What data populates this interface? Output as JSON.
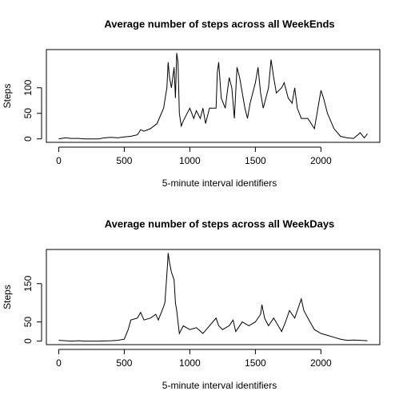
{
  "chart_data": [
    {
      "type": "line",
      "title": "Average number of steps across all WeekEnds",
      "xlabel": "5-minute interval identifiers",
      "ylabel": "Steps",
      "color": "#000000",
      "xlim": [
        -94.2,
        2449.2
      ],
      "xticks": [
        0,
        500,
        1000,
        1500,
        2000
      ],
      "ylim": [
        -6.7,
        174.7
      ],
      "yticks": [
        0,
        50,
        100
      ],
      "x": [
        0,
        50,
        100,
        150,
        200,
        250,
        300,
        350,
        400,
        450,
        500,
        550,
        600,
        625,
        650,
        700,
        750,
        800,
        825,
        835,
        845,
        860,
        880,
        890,
        900,
        910,
        920,
        935,
        950,
        980,
        1000,
        1030,
        1050,
        1080,
        1100,
        1120,
        1150,
        1200,
        1210,
        1220,
        1240,
        1270,
        1300,
        1320,
        1340,
        1360,
        1380,
        1420,
        1440,
        1460,
        1500,
        1520,
        1540,
        1560,
        1600,
        1620,
        1640,
        1660,
        1700,
        1720,
        1750,
        1780,
        1800,
        1820,
        1850,
        1900,
        1950,
        2000,
        2020,
        2050,
        2100,
        2150,
        2200,
        2250,
        2300,
        2330,
        2355
      ],
      "values": [
        0,
        2,
        1,
        1,
        0,
        0,
        0,
        2,
        3,
        2,
        4,
        5,
        8,
        18,
        15,
        20,
        30,
        60,
        100,
        150,
        120,
        100,
        140,
        80,
        168,
        150,
        50,
        25,
        35,
        50,
        60,
        40,
        55,
        40,
        60,
        30,
        60,
        60,
        130,
        150,
        80,
        60,
        120,
        100,
        40,
        140,
        120,
        60,
        40,
        70,
        110,
        140,
        90,
        60,
        100,
        155,
        120,
        90,
        100,
        110,
        80,
        70,
        100,
        60,
        40,
        40,
        20,
        95,
        80,
        50,
        20,
        5,
        2,
        1,
        12,
        2,
        10
      ]
    },
    {
      "type": "line",
      "title": "Average number of steps across all WeekDays",
      "xlabel": "5-minute interval identifiers",
      "ylabel": "Steps",
      "color": "#000000",
      "xlim": [
        -94.2,
        2449.2
      ],
      "xticks": [
        0,
        500,
        1000,
        1500,
        2000
      ],
      "ylim": [
        -9.2,
        239.2
      ],
      "yticks": [
        0,
        50,
        150
      ],
      "x": [
        0,
        50,
        100,
        150,
        200,
        300,
        400,
        450,
        500,
        530,
        550,
        600,
        625,
        650,
        700,
        740,
        760,
        800,
        810,
        820,
        830,
        835,
        845,
        860,
        880,
        890,
        900,
        910,
        920,
        950,
        1000,
        1050,
        1100,
        1150,
        1200,
        1220,
        1250,
        1300,
        1330,
        1350,
        1400,
        1450,
        1500,
        1540,
        1550,
        1570,
        1600,
        1640,
        1700,
        1730,
        1760,
        1800,
        1830,
        1850,
        1870,
        1900,
        1950,
        2000,
        2050,
        2100,
        2150,
        2200,
        2250,
        2300,
        2355
      ],
      "values": [
        2,
        1,
        0,
        1,
        0,
        0,
        1,
        2,
        5,
        30,
        55,
        60,
        75,
        55,
        60,
        70,
        55,
        90,
        100,
        150,
        200,
        230,
        205,
        180,
        160,
        100,
        80,
        50,
        20,
        40,
        30,
        35,
        20,
        40,
        60,
        40,
        30,
        40,
        55,
        25,
        50,
        40,
        50,
        70,
        95,
        60,
        40,
        60,
        25,
        50,
        80,
        60,
        90,
        110,
        80,
        60,
        30,
        20,
        15,
        10,
        5,
        2,
        3,
        2,
        1
      ]
    }
  ]
}
